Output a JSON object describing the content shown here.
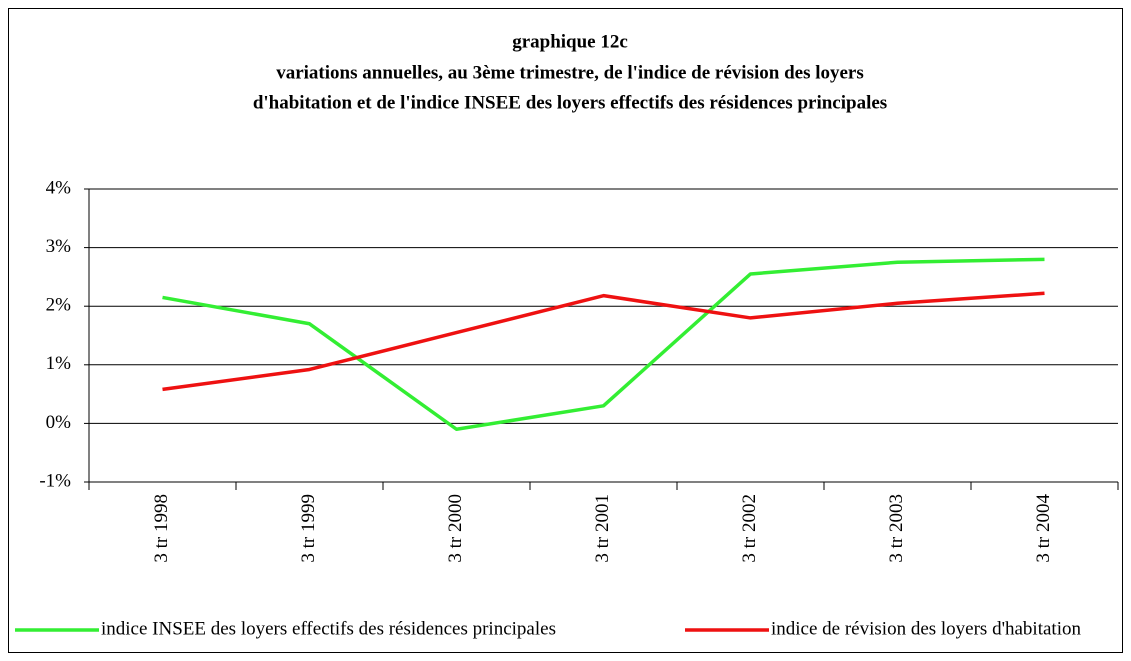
{
  "chart_data": {
    "type": "line",
    "title": "graphique 12c",
    "subtitle": [
      "variations annuelles, au 3ème trimestre, de l'indice de révision des loyers",
      "d'habitation  et de l'indice INSEE des loyers effectifs des résidences principales"
    ],
    "categories": [
      "3 tr 1998",
      "3 tr 1999",
      "3 tr 2000",
      "3 tr 2001",
      "3 tr 2002",
      "3 tr 2003",
      "3 tr 2004"
    ],
    "series": [
      {
        "name": "indice INSEE des loyers effectifs des résidences principales",
        "color": "#33ee33",
        "values": [
          2.15,
          1.7,
          -0.1,
          0.3,
          2.55,
          2.75,
          2.8
        ]
      },
      {
        "name": "indice de révision des loyers d'habitation",
        "color": "#ee1111",
        "values": [
          0.58,
          0.92,
          1.55,
          2.18,
          1.8,
          2.05,
          2.22
        ]
      }
    ],
    "ylim": [
      -1,
      4
    ],
    "yticks": [
      {
        "value": -1,
        "label": "-1%"
      },
      {
        "value": 0,
        "label": "0%"
      },
      {
        "value": 1,
        "label": "1%"
      },
      {
        "value": 2,
        "label": "2%"
      },
      {
        "value": 3,
        "label": "3%"
      },
      {
        "value": 4,
        "label": "4%"
      }
    ],
    "grid": true
  }
}
